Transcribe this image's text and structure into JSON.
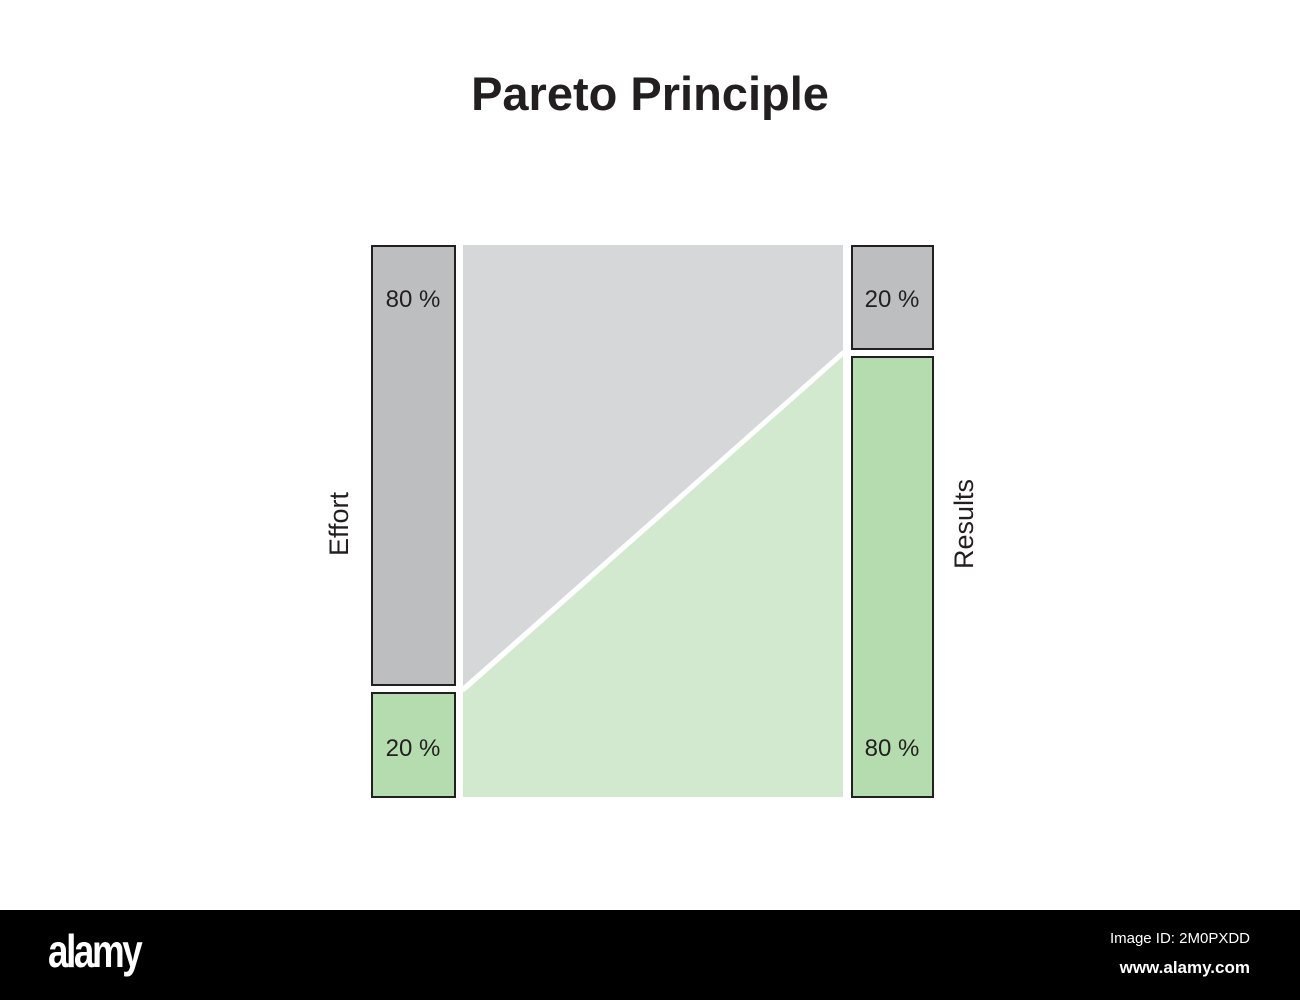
{
  "title": "Pareto Principle",
  "colors": {
    "effort_gray": "#bdbec0",
    "region_gray": "#d6d7d9",
    "results_green": "#b5dcae",
    "region_green": "#d2e9cf",
    "outline": "#231f20"
  },
  "effort": {
    "label": "Effort",
    "top_pct": "80 %",
    "bottom_pct": "20 %",
    "top_value": 80,
    "bottom_value": 20
  },
  "results": {
    "label": "Results",
    "top_pct": "20 %",
    "bottom_pct": "80 %",
    "top_value": 20,
    "bottom_value": 80
  },
  "footer": {
    "logo": "alamy",
    "image_id": "Image ID: 2M0PXDD",
    "site": "www.alamy.com"
  }
}
